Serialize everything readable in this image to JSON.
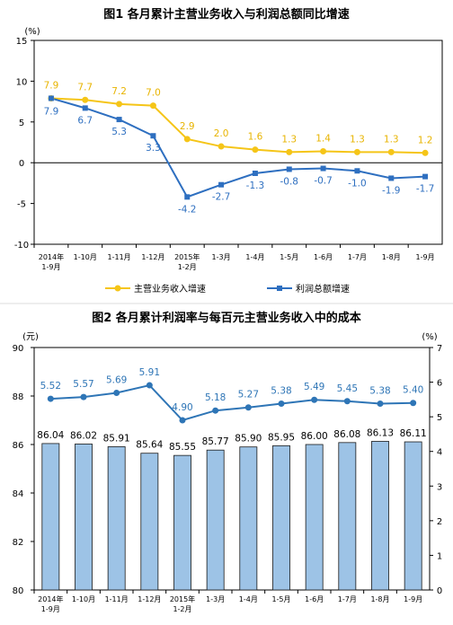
{
  "chart_data": [
    {
      "type": "line",
      "title": "图1  各月累计主营业务收入与利润总额同比增速",
      "unit_label": "(%)",
      "categories": [
        "2014年\n1-9月",
        "1-10月",
        "1-11月",
        "1-12月",
        "2015年\n1-2月",
        "1-3月",
        "1-4月",
        "1-5月",
        "1-6月",
        "1-7月",
        "1-8月",
        "1-9月"
      ],
      "ylim": [
        -10,
        15
      ],
      "yticks": [
        -10,
        -5,
        0,
        5,
        10,
        15
      ],
      "grid": false,
      "legend_position": "bottom",
      "series": [
        {
          "name": "主营业务收入增速",
          "color": "#F5C518",
          "values": [
            7.9,
            7.7,
            7.2,
            7.0,
            2.9,
            2.0,
            1.6,
            1.3,
            1.4,
            1.3,
            1.3,
            1.2
          ]
        },
        {
          "name": "利润总额增速",
          "color": "#2E6FC0",
          "values": [
            7.9,
            6.7,
            5.3,
            3.3,
            -4.2,
            -2.7,
            -1.3,
            -0.8,
            -0.7,
            -1.0,
            -1.9,
            -1.7
          ]
        }
      ],
      "label_colors": {
        "revenue": "#E8B400",
        "profit": "#2E6FC0"
      }
    },
    {
      "type": "bar+line",
      "title": "图2  各月累计利润率与每百元主营业务收入中的成本",
      "left_unit_label": "(元)",
      "right_unit_label": "(%)",
      "categories": [
        "2014年\n1-9月",
        "1-10月",
        "1-11月",
        "1-12月",
        "2015年\n1-2月",
        "1-3月",
        "1-4月",
        "1-5月",
        "1-6月",
        "1-7月",
        "1-8月",
        "1-9月"
      ],
      "bar_values": [
        86.04,
        86.02,
        85.91,
        85.64,
        85.55,
        85.77,
        85.9,
        85.95,
        86.0,
        86.08,
        86.13,
        86.11
      ],
      "line_values": [
        5.52,
        5.57,
        5.69,
        5.91,
        4.9,
        5.18,
        5.27,
        5.38,
        5.49,
        5.45,
        5.38,
        5.4
      ],
      "ylim_left": [
        80,
        90
      ],
      "yticks_left": [
        80,
        82,
        84,
        86,
        88,
        90
      ],
      "ylim_right": [
        0,
        7
      ],
      "yticks_right": [
        0,
        1,
        2,
        3,
        4,
        5,
        6,
        7
      ],
      "grid": false,
      "bar_color": "#9DC3E6",
      "line_color": "#2E75B6"
    }
  ]
}
